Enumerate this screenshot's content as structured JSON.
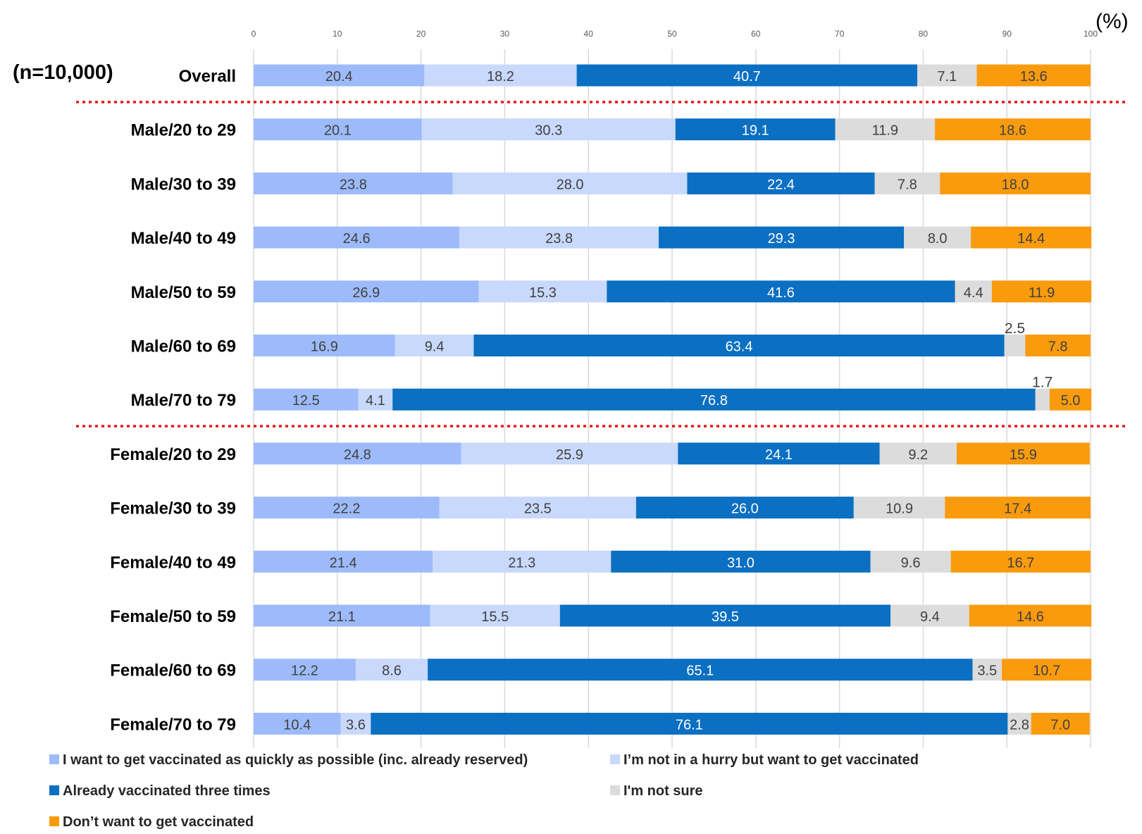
{
  "chart_data": {
    "type": "bar",
    "orientation": "horizontal",
    "stacked": true,
    "sample_size_label": "(n=10,000)",
    "unit_label": "(%)",
    "xlim": [
      0,
      100
    ],
    "x_ticks": [
      "0",
      "10",
      "20",
      "30",
      "40",
      "50",
      "60",
      "70",
      "80",
      "90",
      "100"
    ],
    "grid": true,
    "legend_position": "bottom",
    "categories": [
      "Overall",
      "Male/20 to 29",
      "Male/30 to 39",
      "Male/40 to 49",
      "Male/50 to 59",
      "Male/60 to 69",
      "Male/70 to 79",
      "Female/20 to 29",
      "Female/30 to 39",
      "Female/40 to 49",
      "Female/50 to 59",
      "Female/60 to 69",
      "Female/70  to 79"
    ],
    "series": [
      {
        "name": "I want to get vaccinated as quickly as possible (inc. already reserved)",
        "color": "#9DBBFA",
        "values": [
          20.4,
          20.1,
          23.8,
          24.6,
          26.9,
          16.9,
          12.5,
          24.8,
          22.2,
          21.4,
          21.1,
          12.2,
          10.4
        ],
        "labels": [
          "20.4",
          "20.1",
          "23.8",
          "24.6",
          "26.9",
          "16.9",
          "12.5",
          "24.8",
          "22.2",
          "21.4",
          "21.1",
          "12.2",
          "10.4"
        ]
      },
      {
        "name": "I’m not in a hurry but want to get vaccinated",
        "color": "#C8D9FC",
        "values": [
          18.2,
          30.3,
          28.0,
          23.8,
          15.3,
          9.4,
          4.1,
          25.9,
          23.5,
          21.3,
          15.5,
          8.6,
          3.6
        ],
        "labels": [
          "18.2",
          "30.3",
          "28.0",
          "23.8",
          "15.3",
          "9.4",
          "4.1",
          "25.9",
          "23.5",
          "21.3",
          "15.5",
          "8.6",
          "3.6"
        ]
      },
      {
        "name": "Already vaccinated three times",
        "color": "#0B6FC2",
        "values": [
          40.7,
          19.1,
          22.4,
          29.3,
          41.6,
          63.4,
          76.8,
          24.1,
          26.0,
          31.0,
          39.5,
          65.1,
          76.1
        ],
        "labels": [
          "40.7",
          "19.1",
          "22.4",
          "29.3",
          "41.6",
          "63.4",
          "76.8",
          "24.1",
          "26.0",
          "31.0",
          "39.5",
          "65.1",
          "76.1"
        ]
      },
      {
        "name": "I'm not sure",
        "color": "#DCDCDC",
        "values": [
          7.1,
          11.9,
          7.8,
          8.0,
          4.4,
          2.5,
          1.7,
          9.2,
          10.9,
          9.6,
          9.4,
          3.5,
          2.8
        ],
        "labels": [
          "7.1",
          "11.9",
          "7.8",
          "8.0",
          "4.4",
          "2.5",
          "1.7",
          "9.2",
          "10.9",
          "9.6",
          "9.4",
          "3.5",
          "2.8"
        ]
      },
      {
        "name": "Don’t want to get vaccinated",
        "color": "#F99B0C",
        "values": [
          13.6,
          18.6,
          18.0,
          14.4,
          11.9,
          7.8,
          5.0,
          15.9,
          17.4,
          16.7,
          14.6,
          10.7,
          7.0
        ],
        "labels": [
          "13.6",
          "18.6",
          "18.0",
          "14.4",
          "11.9",
          "7.8",
          "5.0",
          "15.9",
          "17.4",
          "16.7",
          "14.6",
          "10.7",
          "7.0"
        ]
      }
    ]
  }
}
